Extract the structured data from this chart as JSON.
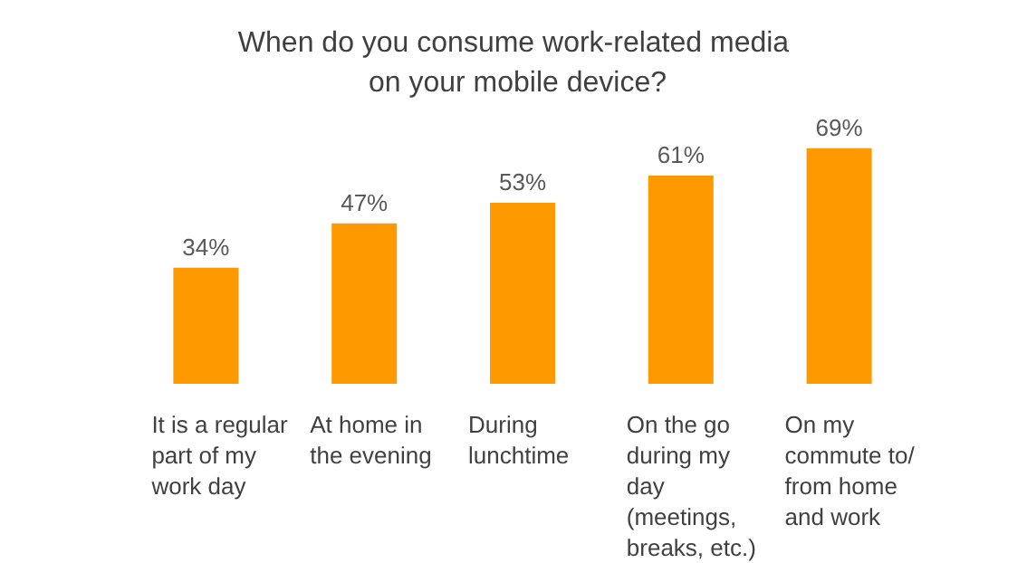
{
  "chart_data": {
    "type": "bar",
    "title": "When do you consume work-related media on your mobile device?",
    "categories": [
      "It is a regular part of my work day",
      "At home in the evening",
      "During lunchtime",
      "On the go during my day (meetings, breaks, etc.)",
      "On my commute to/from home and work"
    ],
    "values": [
      34,
      47,
      53,
      61,
      69
    ],
    "value_labels": [
      "34%",
      "47%",
      "53%",
      "61%",
      "69%"
    ],
    "color": "#ff9900"
  }
}
